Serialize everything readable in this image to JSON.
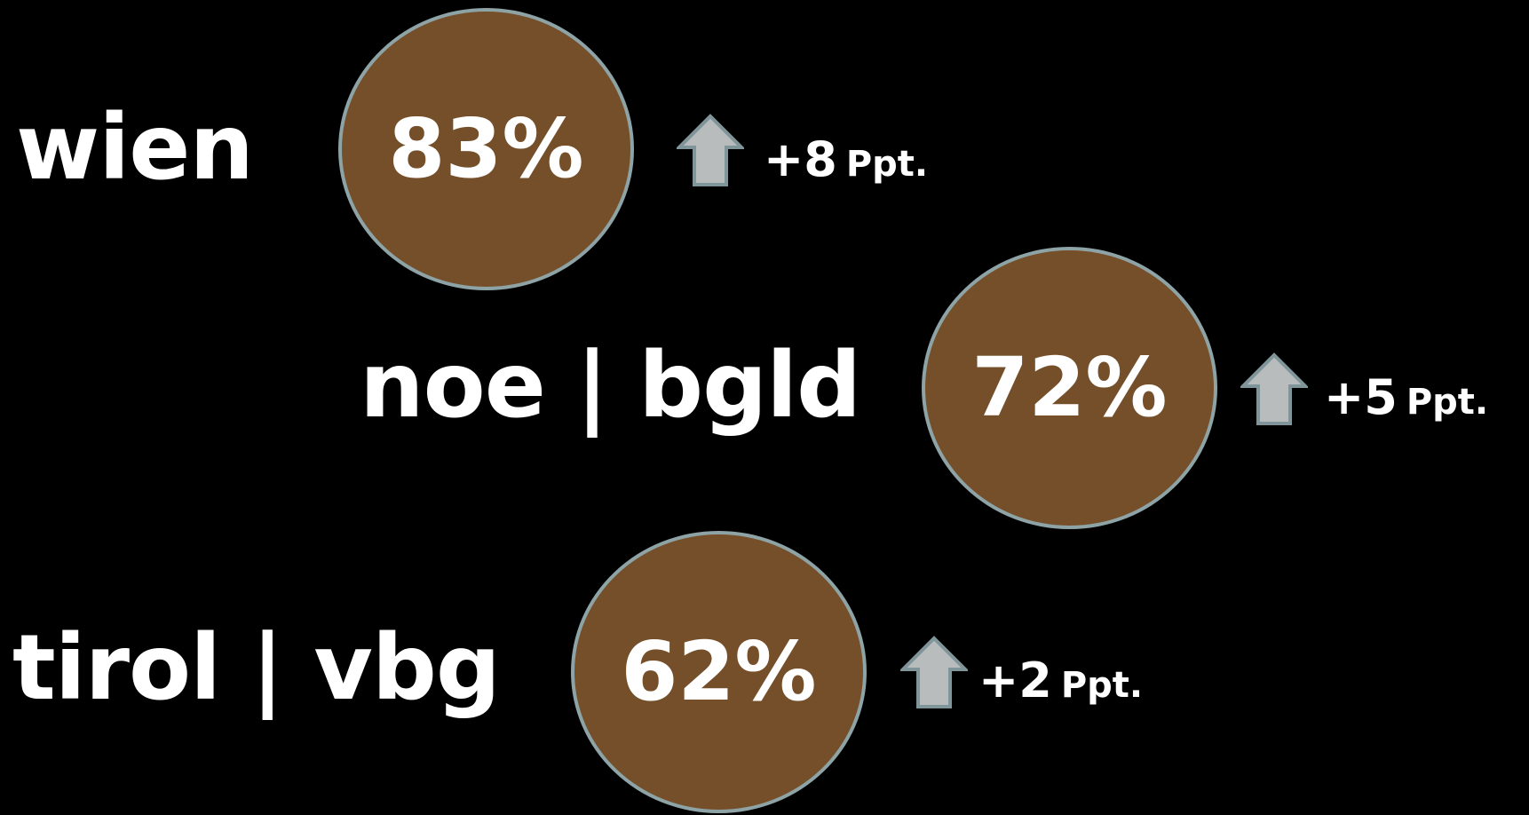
{
  "rows": [
    {
      "region": "wien",
      "value": "83%",
      "change": "+8",
      "unit": "Ppt."
    },
    {
      "region": "noe | bgld",
      "value": "72%",
      "change": "+5",
      "unit": "Ppt."
    },
    {
      "region": "tirol | vbg",
      "value": "62%",
      "change": "+2",
      "unit": "Ppt."
    }
  ],
  "colors": {
    "background": "#000000",
    "bubble_fill": "#754f2a",
    "bubble_border": "#8ea3a6",
    "arrow_fill": "#b9bcbd",
    "text": "#ffffff"
  },
  "icons": {
    "trend": "arrow-up-icon"
  }
}
